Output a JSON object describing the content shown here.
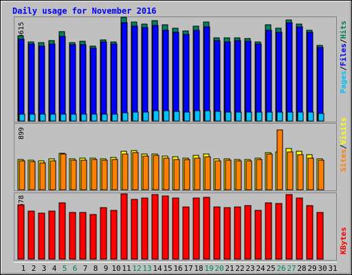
{
  "title": "Daily usage for November 2016",
  "colors": {
    "background": "#c0c0c0",
    "title": "#0000ff",
    "hits": "#00805c",
    "files": "#0000ff",
    "pages": "#00c0ff",
    "visits": "#ffff00",
    "sites": "#ff8000",
    "kbytes": "#ff0000",
    "weekend_label": "#00805c",
    "weekday_label": "#000000"
  },
  "chart_data": [
    {
      "type": "bar",
      "panel": "hits-files-pages",
      "ylabel_max": "19615",
      "ymax": 19615,
      "side_labels": [
        "Pages",
        "/",
        "Files",
        "/",
        "Hits"
      ],
      "x": [
        "1",
        "2",
        "3",
        "4",
        "5",
        "6",
        "7",
        "8",
        "9",
        "10",
        "11",
        "12",
        "13",
        "14",
        "15",
        "16",
        "17",
        "18",
        "19",
        "20",
        "21",
        "22",
        "23",
        "24",
        "25",
        "26",
        "27",
        "28",
        "29",
        "30",
        "31"
      ],
      "weekend_days": [
        5,
        6,
        12,
        13,
        19,
        20,
        26,
        27
      ],
      "series": [
        {
          "name": "Hits",
          "values": [
            16600,
            15500,
            15300,
            15700,
            17400,
            15300,
            15600,
            14700,
            15900,
            15500,
            20300,
            19300,
            19000,
            19600,
            18800,
            18200,
            17600,
            18600,
            19300,
            16200,
            16200,
            16300,
            16100,
            15500,
            18800,
            18100,
            19800,
            18900,
            17800,
            14800,
            0
          ]
        },
        {
          "name": "Files",
          "values": [
            16000,
            15000,
            14700,
            15000,
            16500,
            14900,
            14900,
            14200,
            15500,
            15000,
            19200,
            18500,
            18300,
            18700,
            17800,
            17300,
            16900,
            17800,
            18400,
            15700,
            15500,
            15700,
            15600,
            15000,
            17800,
            17300,
            19200,
            18400,
            17300,
            14400,
            0
          ]
        },
        {
          "name": "Pages",
          "values": [
            1300,
            1300,
            1300,
            1300,
            1400,
            1300,
            1300,
            1300,
            1400,
            1300,
            1600,
            1700,
            1800,
            2000,
            2000,
            1900,
            1800,
            2000,
            2000,
            1900,
            1800,
            1700,
            1700,
            1700,
            1700,
            1700,
            1800,
            1800,
            1800,
            1500,
            0
          ]
        }
      ]
    },
    {
      "type": "bar",
      "panel": "sites-visits",
      "ylabel_max": "899",
      "ymax": 899,
      "side_labels": [
        "Sites",
        "/",
        "Visits"
      ],
      "series": [
        {
          "name": "Visits",
          "values": [
            440,
            430,
            420,
            450,
            530,
            450,
            460,
            460,
            450,
            470,
            560,
            570,
            520,
            520,
            490,
            480,
            460,
            500,
            520,
            450,
            450,
            440,
            440,
            460,
            540,
            550,
            600,
            560,
            510,
            450,
            0
          ]
        },
        {
          "name": "Sites",
          "values": [
            420,
            410,
            390,
            420,
            520,
            430,
            430,
            440,
            430,
            440,
            520,
            540,
            490,
            500,
            460,
            440,
            440,
            460,
            480,
            420,
            430,
            420,
            420,
            440,
            520,
            870,
            550,
            510,
            460,
            430,
            0
          ]
        }
      ]
    },
    {
      "type": "bar",
      "panel": "kbytes",
      "ylabel_max": "586678",
      "ymax": 586678,
      "side_labels": [
        "KBytes"
      ],
      "series": [
        {
          "name": "KBytes",
          "values": [
            500000,
            440000,
            420000,
            440000,
            520000,
            430000,
            430000,
            410000,
            470000,
            450000,
            600000,
            550000,
            560000,
            590000,
            580000,
            560000,
            480000,
            560000,
            570000,
            480000,
            470000,
            480000,
            490000,
            450000,
            520000,
            510000,
            590000,
            560000,
            490000,
            430000,
            0
          ]
        }
      ]
    }
  ]
}
